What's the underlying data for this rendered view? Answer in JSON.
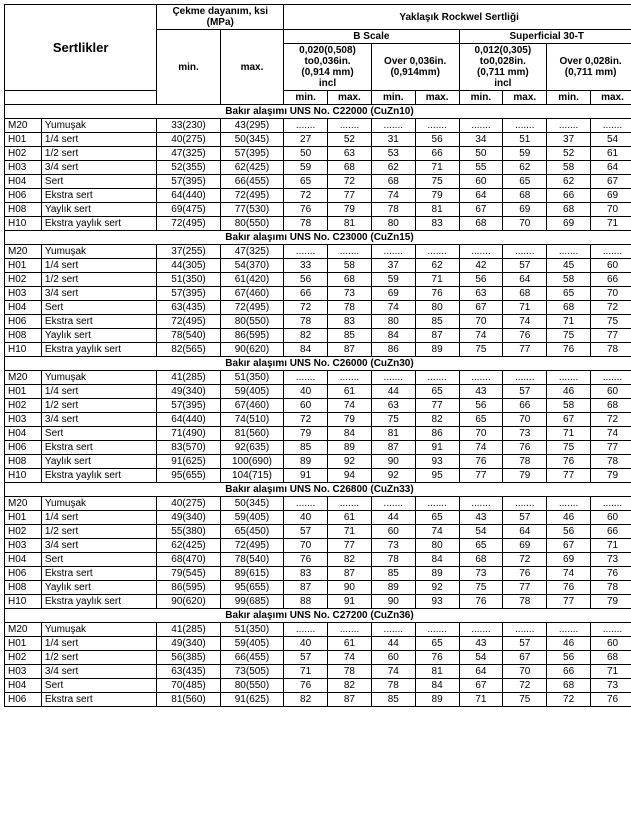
{
  "headers": {
    "main": "Sertlikler",
    "tensile": "Çekme dayanım, ksi (MPa)",
    "rockwell": "Yaklaşık Rockwel Sertliği",
    "bscale": "B Scale",
    "superficial": "Superficial 30-T",
    "col_b1": [
      "0,020(0,508)",
      "to0,036in.",
      "(0,914 mm)",
      "incl"
    ],
    "col_b2": [
      "Over 0,036in.",
      "(0,914mm)"
    ],
    "col_s1": [
      "0,012(0,305)",
      "to0,028in.",
      "(0,711 mm)",
      "incl"
    ],
    "col_s2": [
      "Over 0,028in.",
      "(0,711 mm)"
    ],
    "min": "min.",
    "max": "max."
  },
  "sections": [
    {
      "title": "Bakır alaşımı UNS No. C22000 (CuZn10)",
      "rows": [
        {
          "c": "M20",
          "d": "Yumuşak",
          "min": "33(230)",
          "max": "43(295)",
          "v": [
            ".......",
            ".......",
            ".......",
            ".......",
            ".......",
            ".......",
            ".......",
            "......."
          ]
        },
        {
          "c": "H01",
          "d": "1/4 sert",
          "min": "40(275)",
          "max": "50(345)",
          "v": [
            "27",
            "52",
            "31",
            "56",
            "34",
            "51",
            "37",
            "54"
          ]
        },
        {
          "c": "H02",
          "d": "1/2 sert",
          "min": "47(325)",
          "max": "57(395)",
          "v": [
            "50",
            "63",
            "53",
            "66",
            "50",
            "59",
            "52",
            "61"
          ]
        },
        {
          "c": "H03",
          "d": "3/4 sert",
          "min": "52(355)",
          "max": "62(425)",
          "v": [
            "59",
            "68",
            "62",
            "71",
            "55",
            "62",
            "58",
            "64"
          ]
        },
        {
          "c": "H04",
          "d": "Sert",
          "min": "57(395)",
          "max": "66(455)",
          "v": [
            "65",
            "72",
            "68",
            "75",
            "60",
            "65",
            "62",
            "67"
          ]
        },
        {
          "c": "H06",
          "d": "Ekstra sert",
          "min": "64(440)",
          "max": "72(495)",
          "v": [
            "72",
            "77",
            "74",
            "79",
            "64",
            "68",
            "66",
            "69"
          ]
        },
        {
          "c": "H08",
          "d": "Yaylık sert",
          "min": "69(475)",
          "max": "77(530)",
          "v": [
            "76",
            "79",
            "78",
            "81",
            "67",
            "69",
            "68",
            "70"
          ]
        },
        {
          "c": "H10",
          "d": "Ekstra yaylık sert",
          "min": "72(495)",
          "max": "80(550)",
          "v": [
            "78",
            "81",
            "80",
            "83",
            "68",
            "70",
            "69",
            "71"
          ]
        }
      ]
    },
    {
      "title": "Bakır alaşımı UNS No. C23000 (CuZn15)",
      "rows": [
        {
          "c": "M20",
          "d": "Yumuşak",
          "min": "37(255)",
          "max": "47(325)",
          "v": [
            ".......",
            ".......",
            ".......",
            ".......",
            ".......",
            ".......",
            ".......",
            "......."
          ]
        },
        {
          "c": "H01",
          "d": "1/4 sert",
          "min": "44(305)",
          "max": "54(370)",
          "v": [
            "33",
            "58",
            "37",
            "62",
            "42",
            "57",
            "45",
            "60"
          ]
        },
        {
          "c": "H02",
          "d": "1/2 sert",
          "min": "51(350)",
          "max": "61(420)",
          "v": [
            "56",
            "68",
            "59",
            "71",
            "56",
            "64",
            "58",
            "66"
          ]
        },
        {
          "c": "H03",
          "d": "3/4 sert",
          "min": "57(395)",
          "max": "67(460)",
          "v": [
            "66",
            "73",
            "69",
            "76",
            "63",
            "68",
            "65",
            "70"
          ]
        },
        {
          "c": "H04",
          "d": "Sert",
          "min": "63(435)",
          "max": "72(495)",
          "v": [
            "72",
            "78",
            "74",
            "80",
            "67",
            "71",
            "68",
            "72"
          ]
        },
        {
          "c": "H06",
          "d": "Ekstra sert",
          "min": "72(495)",
          "max": "80(550)",
          "v": [
            "78",
            "83",
            "80",
            "85",
            "70",
            "74",
            "71",
            "75"
          ]
        },
        {
          "c": "H08",
          "d": "Yaylık sert",
          "min": "78(540)",
          "max": "86(595)",
          "v": [
            "82",
            "85",
            "84",
            "87",
            "74",
            "76",
            "75",
            "77"
          ]
        },
        {
          "c": "H10",
          "d": "Ekstra yaylık sert",
          "min": "82(565)",
          "max": "90(620)",
          "v": [
            "84",
            "87",
            "86",
            "89",
            "75",
            "77",
            "76",
            "78"
          ]
        }
      ]
    },
    {
      "title": "Bakır alaşımı UNS No. C26000 (CuZn30)",
      "rows": [
        {
          "c": "M20",
          "d": "Yumuşak",
          "min": "41(285)",
          "max": "51(350)",
          "v": [
            ".......",
            ".......",
            ".......",
            ".......",
            ".......",
            ".......",
            ".......",
            "......."
          ]
        },
        {
          "c": "H01",
          "d": "1/4 sert",
          "min": "49(340)",
          "max": "59(405)",
          "v": [
            "40",
            "61",
            "44",
            "65",
            "43",
            "57",
            "46",
            "60"
          ]
        },
        {
          "c": "H02",
          "d": "1/2 sert",
          "min": "57(395)",
          "max": "67(460)",
          "v": [
            "60",
            "74",
            "63",
            "77",
            "56",
            "66",
            "58",
            "68"
          ]
        },
        {
          "c": "H03",
          "d": "3/4 sert",
          "min": "64(440)",
          "max": "74(510)",
          "v": [
            "72",
            "79",
            "75",
            "82",
            "65",
            "70",
            "67",
            "72"
          ]
        },
        {
          "c": "H04",
          "d": "Sert",
          "min": "71(490)",
          "max": "81(560)",
          "v": [
            "79",
            "84",
            "81",
            "86",
            "70",
            "73",
            "71",
            "74"
          ]
        },
        {
          "c": "H06",
          "d": "Ekstra sert",
          "min": "83(570)",
          "max": "92(635)",
          "v": [
            "85",
            "89",
            "87",
            "91",
            "74",
            "76",
            "75",
            "77"
          ]
        },
        {
          "c": "H08",
          "d": "Yaylık sert",
          "min": "91(625)",
          "max": "100(690)",
          "v": [
            "89",
            "92",
            "90",
            "93",
            "76",
            "78",
            "76",
            "78"
          ]
        },
        {
          "c": "H10",
          "d": "Ekstra yaylık sert",
          "min": "95(655)",
          "max": "104(715)",
          "v": [
            "91",
            "94",
            "92",
            "95",
            "77",
            "79",
            "77",
            "79"
          ]
        }
      ]
    },
    {
      "title": "Bakır alaşımı UNS No. C26800 (CuZn33)",
      "rows": [
        {
          "c": "M20",
          "d": "Yumuşak",
          "min": "40(275)",
          "max": "50(345)",
          "v": [
            ".......",
            ".......",
            ".......",
            ".......",
            ".......",
            ".......",
            ".......",
            "......."
          ]
        },
        {
          "c": "H01",
          "d": "1/4 sert",
          "min": "49(340)",
          "max": "59(405)",
          "v": [
            "40",
            "61",
            "44",
            "65",
            "43",
            "57",
            "46",
            "60"
          ]
        },
        {
          "c": "H02",
          "d": "1/2 sert",
          "min": "55(380)",
          "max": "65(450)",
          "v": [
            "57",
            "71",
            "60",
            "74",
            "54",
            "64",
            "56",
            "66"
          ]
        },
        {
          "c": "H03",
          "d": "3/4 sert",
          "min": "62(425)",
          "max": "72(495)",
          "v": [
            "70",
            "77",
            "73",
            "80",
            "65",
            "69",
            "67",
            "71"
          ]
        },
        {
          "c": "H04",
          "d": "Sert",
          "min": "68(470)",
          "max": "78(540)",
          "v": [
            "76",
            "82",
            "78",
            "84",
            "68",
            "72",
            "69",
            "73"
          ]
        },
        {
          "c": "H06",
          "d": "Ekstra sert",
          "min": "79(545)",
          "max": "89(615)",
          "v": [
            "83",
            "87",
            "85",
            "89",
            "73",
            "76",
            "74",
            "76"
          ]
        },
        {
          "c": "H08",
          "d": "Yaylık sert",
          "min": "86(595)",
          "max": "95(655)",
          "v": [
            "87",
            "90",
            "89",
            "92",
            "75",
            "77",
            "76",
            "78"
          ]
        },
        {
          "c": "H10",
          "d": "Ekstra yaylık sert",
          "min": "90(620)",
          "max": "99(685)",
          "v": [
            "88",
            "91",
            "90",
            "93",
            "76",
            "78",
            "77",
            "79"
          ]
        }
      ]
    },
    {
      "title": "Bakır alaşımı UNS No. C27200 (CuZn36)",
      "rows": [
        {
          "c": "M20",
          "d": "Yumuşak",
          "min": "41(285)",
          "max": "51(350)",
          "v": [
            ".......",
            ".......",
            ".......",
            ".......",
            ".......",
            ".......",
            ".......",
            "......."
          ]
        },
        {
          "c": "H01",
          "d": "1/4 sert",
          "min": "49(340)",
          "max": "59(405)",
          "v": [
            "40",
            "61",
            "44",
            "65",
            "43",
            "57",
            "46",
            "60"
          ]
        },
        {
          "c": "H02",
          "d": "1/2 sert",
          "min": "56(385)",
          "max": "66(455)",
          "v": [
            "57",
            "74",
            "60",
            "76",
            "54",
            "67",
            "56",
            "68"
          ]
        },
        {
          "c": "H03",
          "d": "3/4 sert",
          "min": "63(435)",
          "max": "73(505)",
          "v": [
            "71",
            "78",
            "74",
            "81",
            "64",
            "70",
            "66",
            "71"
          ]
        },
        {
          "c": "H04",
          "d": "Sert",
          "min": "70(485)",
          "max": "80(550)",
          "v": [
            "76",
            "82",
            "78",
            "84",
            "67",
            "72",
            "68",
            "73"
          ]
        },
        {
          "c": "H06",
          "d": "Ekstra sert",
          "min": "81(560)",
          "max": "91(625)",
          "v": [
            "82",
            "87",
            "85",
            "89",
            "71",
            "75",
            "72",
            "76"
          ]
        }
      ]
    }
  ]
}
